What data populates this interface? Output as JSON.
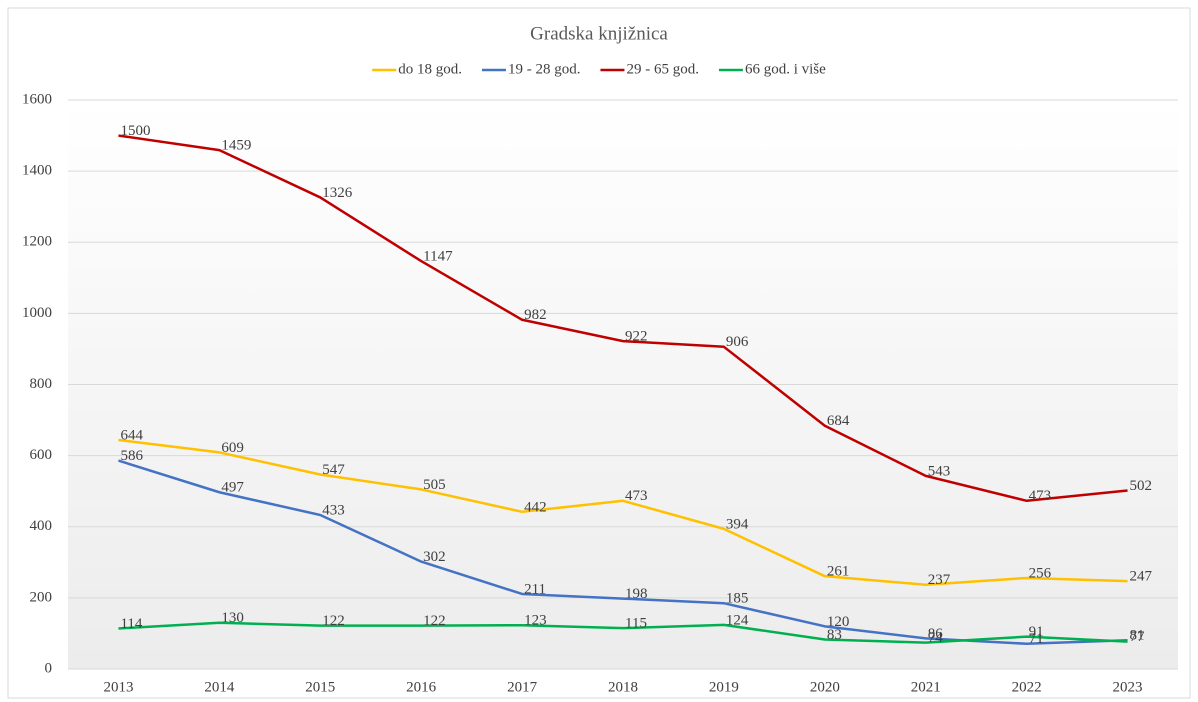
{
  "chart_data": {
    "type": "line",
    "title": "Gradska knjižnica",
    "categories": [
      "2013",
      "2014",
      "2015",
      "2016",
      "2017",
      "2018",
      "2019",
      "2020",
      "2021",
      "2022",
      "2023"
    ],
    "series": [
      {
        "name": "do 18 god.",
        "color": "#ffc000",
        "values": [
          644,
          609,
          547,
          505,
          442,
          473,
          394,
          261,
          237,
          256,
          247
        ]
      },
      {
        "name": "19 - 28 god.",
        "color": "#4472c4",
        "values": [
          586,
          497,
          433,
          302,
          211,
          198,
          185,
          120,
          86,
          71,
          81
        ]
      },
      {
        "name": "29 - 65 god.",
        "color": "#c00000",
        "values": [
          1500,
          1459,
          1326,
          1147,
          982,
          922,
          906,
          684,
          543,
          473,
          502
        ]
      },
      {
        "name": "66 god. i više",
        "color": "#00b050",
        "values": [
          114,
          130,
          122,
          122,
          123,
          115,
          124,
          83,
          74,
          91,
          77
        ]
      }
    ],
    "ylim": [
      0,
      1600
    ],
    "yticks": [
      0,
      200,
      400,
      600,
      800,
      1000,
      1200,
      1400,
      1600
    ],
    "grid": true,
    "legend": "top"
  }
}
